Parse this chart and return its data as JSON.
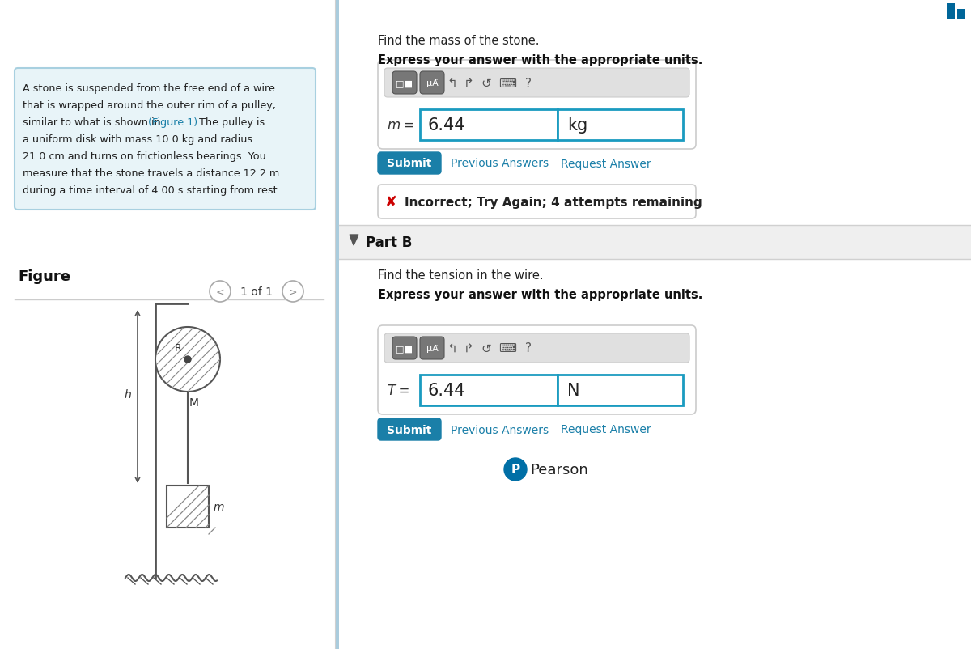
{
  "bg_color": "#ffffff",
  "left_panel_bg": "#e8f4f8",
  "left_panel_border": "#a8d0e0",
  "problem_text_lines": [
    "A stone is suspended from the free end of a wire",
    "that is wrapped around the outer rim of a pulley,",
    "similar to what is shown in (Figure 1). The pulley is",
    "a uniform disk with mass 10.0 kg and radius",
    "21.0 cm and turns on frictionless bearings. You",
    "measure that the stone travels a distance 12.2 m",
    "during a time interval of 4.00 s starting from rest."
  ],
  "figure_link_line_index": 2,
  "figure_label": "Figure",
  "figure_nav": "1 of 1",
  "part_a_find": "Find the mass of the stone.",
  "part_a_express": "Express your answer with the appropriate units.",
  "part_a_value": "6.44",
  "part_a_unit": "kg",
  "part_b_label_text": "Part B",
  "part_b_find": "Find the tension in the wire.",
  "part_b_express": "Express your answer with the appropriate units.",
  "part_b_value": "6.44",
  "part_b_unit": "N",
  "incorrect_text": "Incorrect; Try Again; 4 attempts remaining",
  "submit_color": "#1a7fa8",
  "submit_text_color": "#ffffff",
  "link_color": "#1a7fa8",
  "input_border_color": "#1a9bc0",
  "error_color": "#cc0000",
  "figure_link_color": "#1a7fa8",
  "pearson_blue": "#006fa6",
  "divider_color": "#cccccc",
  "teal_bar_color": "#006699"
}
